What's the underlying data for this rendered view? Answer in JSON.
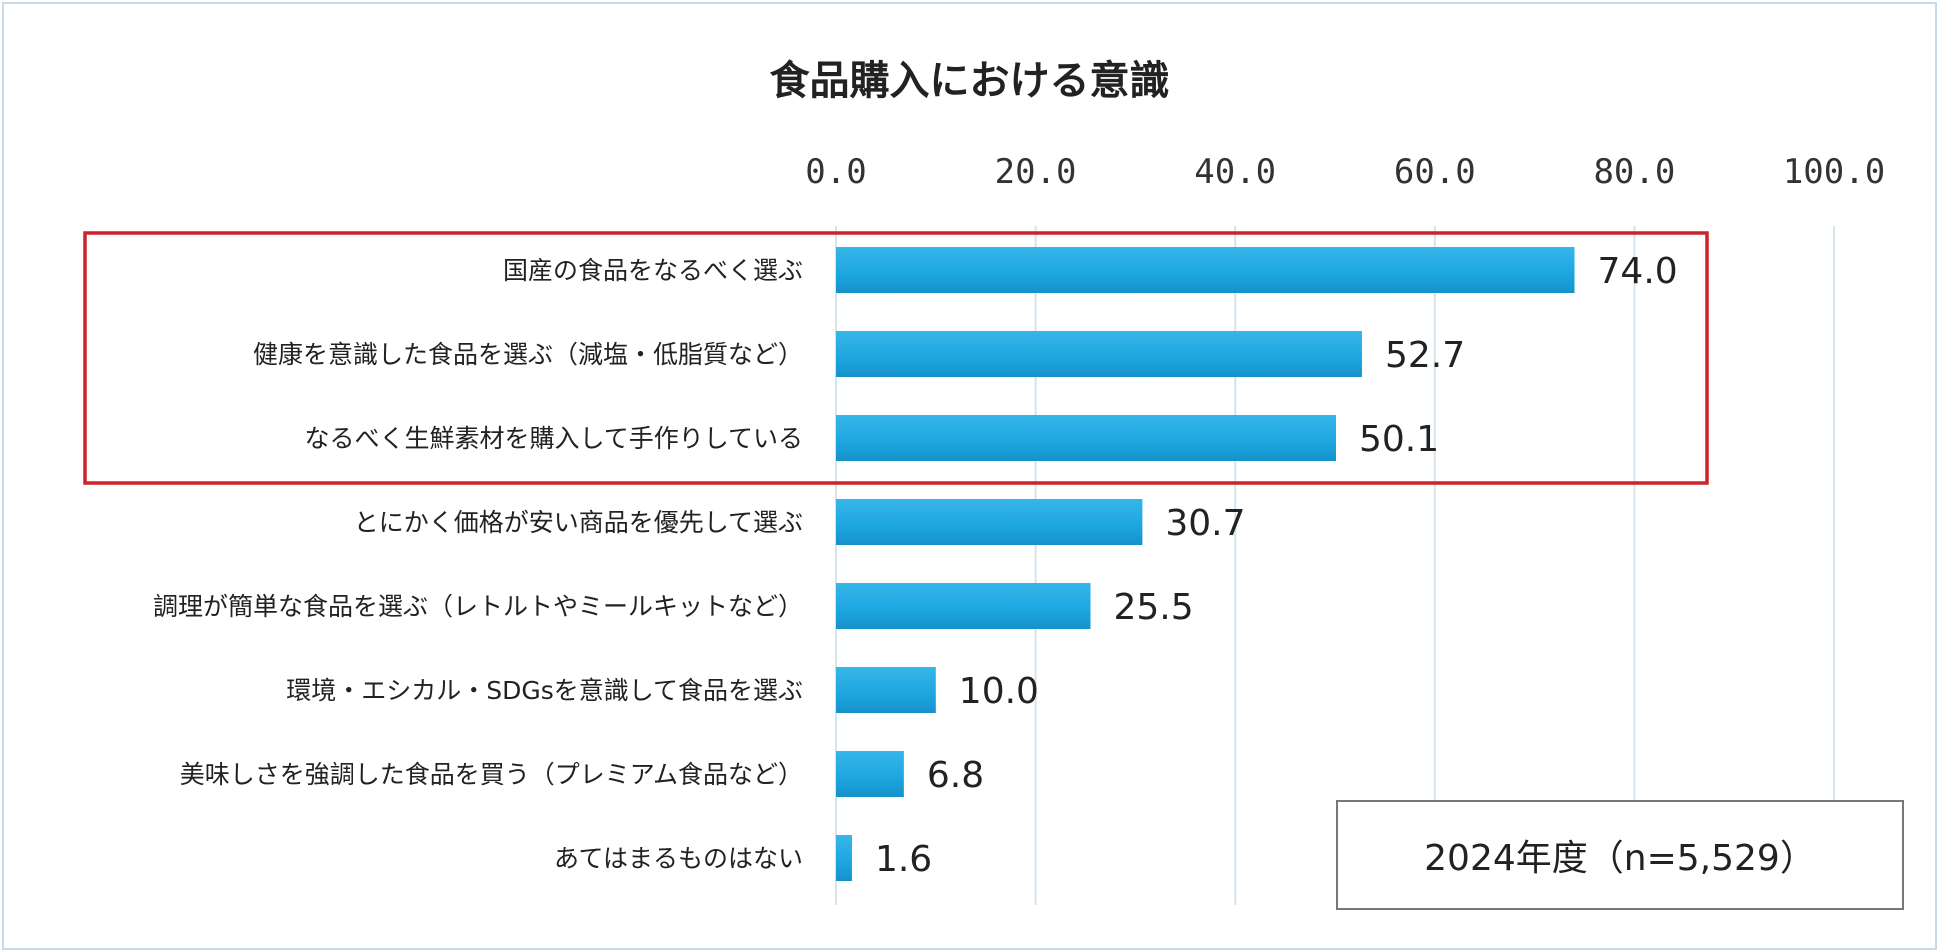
{
  "chart_data": {
    "type": "bar",
    "orientation": "horizontal",
    "title": "食品購入における意識",
    "categories": [
      "国産の食品をなるべく選ぶ",
      "健康を意識した食品を選ぶ（減塩・低脂質など）",
      "なるべく生鮮素材を購入して手作りしている",
      "とにかく価格が安い商品を優先して選ぶ",
      "調理が簡単な食品を選ぶ（レトルトやミールキットなど）",
      "環境・エシカル・SDGsを意識して食品を選ぶ",
      "美味しさを強調した食品を買う（プレミアム食品など）",
      "あてはまるものはない"
    ],
    "values": [
      74.0,
      52.7,
      50.1,
      30.7,
      25.5,
      10.0,
      6.8,
      1.6
    ],
    "value_labels": [
      "74.0",
      "52.7",
      "50.1",
      "30.7",
      "25.5",
      "10.0",
      "6.8",
      "1.6"
    ],
    "xlim": [
      0,
      100
    ],
    "ticks": [
      "0.0",
      "20.0",
      "40.0",
      "60.0",
      "80.0",
      "100.0"
    ],
    "tick_values": [
      0,
      20,
      40,
      60,
      80,
      100
    ],
    "grid": true,
    "axis_position": "top",
    "highlight_top_n": 3,
    "bar_color": "#1ea7e1",
    "highlight_color": "#cc2229"
  },
  "note": "2024年度（n=5,529）"
}
